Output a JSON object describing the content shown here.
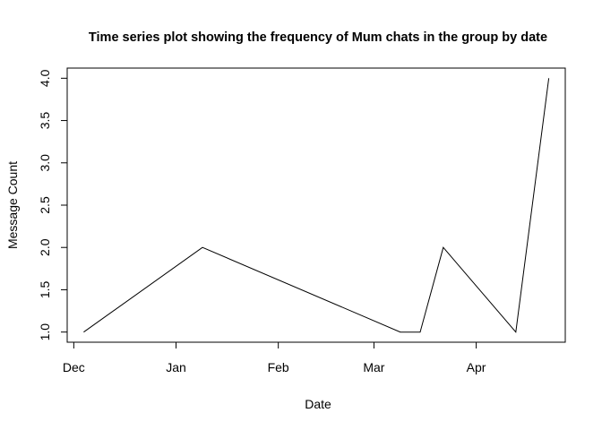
{
  "chart_data": {
    "type": "line",
    "title": "Time series plot showing the frequency of Mum chats in the group by date",
    "xlabel": "Date",
    "ylabel": "Message Count",
    "x_tick_labels": [
      "Dec",
      "Jan",
      "Feb",
      "Mar",
      "Apr"
    ],
    "x_tick_dates": [
      "2019-12-01",
      "2020-01-01",
      "2020-02-01",
      "2020-03-01",
      "2020-04-01"
    ],
    "y_ticks": [
      1.0,
      1.5,
      2.0,
      2.5,
      3.0,
      3.5,
      4.0
    ],
    "y_tick_labels": [
      "1.0",
      "1.5",
      "2.0",
      "2.5",
      "3.0",
      "3.5",
      "4.0"
    ],
    "xlim": [
      "2019-11-29",
      "2020-04-28"
    ],
    "ylim": [
      0.88,
      4.12
    ],
    "grid": false,
    "series": [
      {
        "x": [
          "2019-12-04",
          "2020-01-09",
          "2020-03-09",
          "2020-03-15",
          "2020-03-22",
          "2020-04-13",
          "2020-04-23"
        ],
        "values": [
          1,
          2,
          1,
          1,
          2,
          1,
          4
        ],
        "color": "#000000"
      }
    ]
  }
}
